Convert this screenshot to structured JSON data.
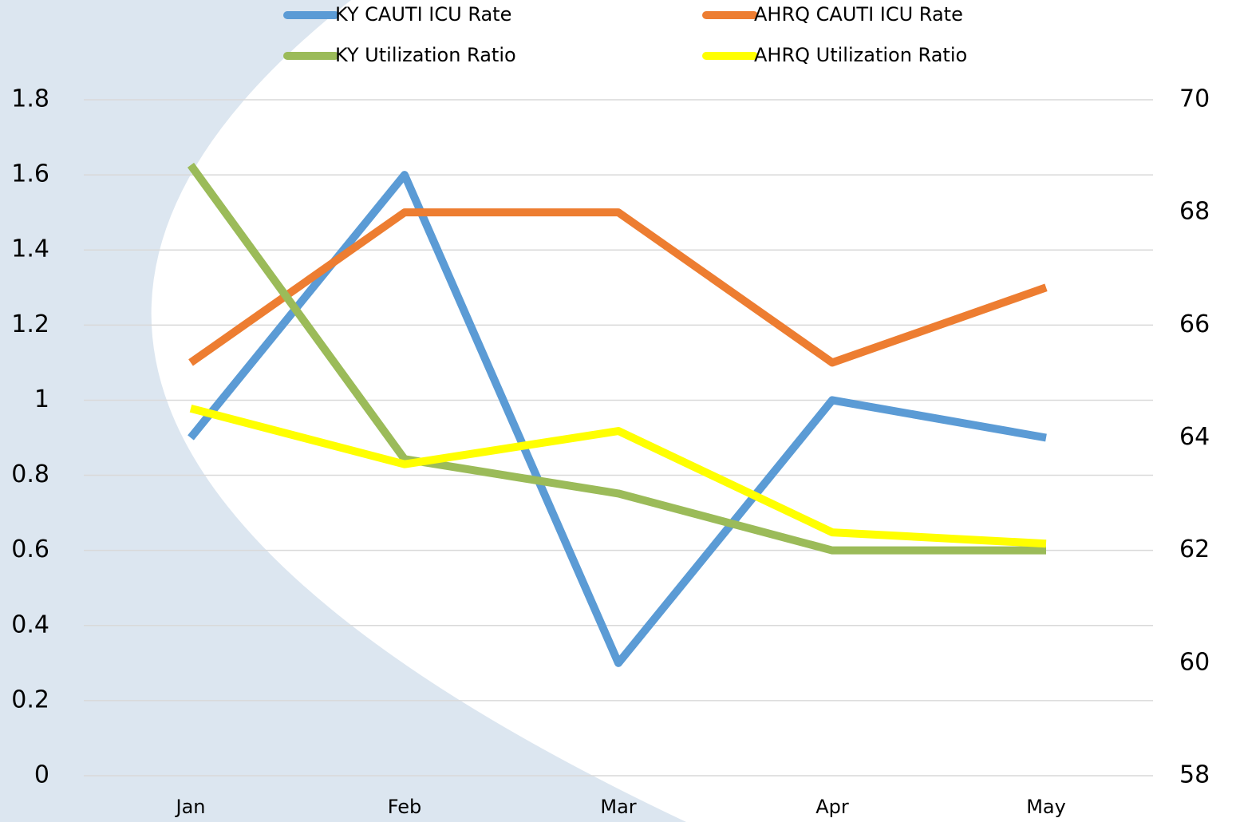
{
  "chart_data": {
    "type": "line",
    "categories": [
      "Jan",
      "Feb",
      "Mar",
      "Apr",
      "May"
    ],
    "series": [
      {
        "name": "KY CAUTI ICU Rate",
        "color": "#5b9bd5",
        "values": [
          0.9,
          1.6,
          0.3,
          1.0,
          0.9
        ]
      },
      {
        "name": "AHRQ CAUTI ICU Rate",
        "color": "#ed7d31",
        "values": [
          1.1,
          1.5,
          1.5,
          1.1,
          1.3
        ]
      },
      {
        "name": "KY Utilization Ratio",
        "color": "#9bbb59",
        "axis": "y2",
        "values": [
          68.84,
          63.62,
          63.01,
          62.0,
          62.0
        ]
      },
      {
        "name": "AHRQ Utilization Ratio",
        "color": "#ffff00",
        "axis": "y2",
        "values": [
          64.52,
          63.53,
          64.12,
          62.32,
          62.12
        ]
      }
    ],
    "ylim": [
      0,
      1.8
    ],
    "yticks": [
      0,
      0.2,
      0.4,
      0.6,
      0.8,
      1,
      1.2,
      1.4,
      1.6,
      1.8
    ],
    "y2lim": [
      58,
      70
    ],
    "y2ticks": [
      58,
      60,
      62,
      64,
      66,
      68,
      70
    ],
    "grid": true,
    "legend": "top"
  }
}
